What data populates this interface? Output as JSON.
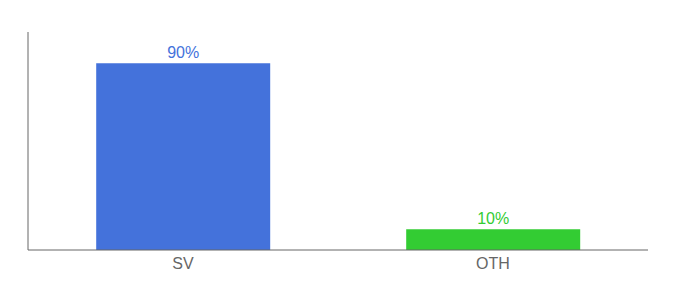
{
  "chart_data": {
    "type": "bar",
    "categories": [
      "SV",
      "OTH"
    ],
    "values": [
      90,
      10
    ],
    "colors": [
      "#4472db",
      "#33cc33"
    ],
    "ylim": [
      0,
      105
    ],
    "data_labels": true,
    "value_labels": [
      "90%",
      "10%"
    ],
    "tick_labels": "x"
  }
}
